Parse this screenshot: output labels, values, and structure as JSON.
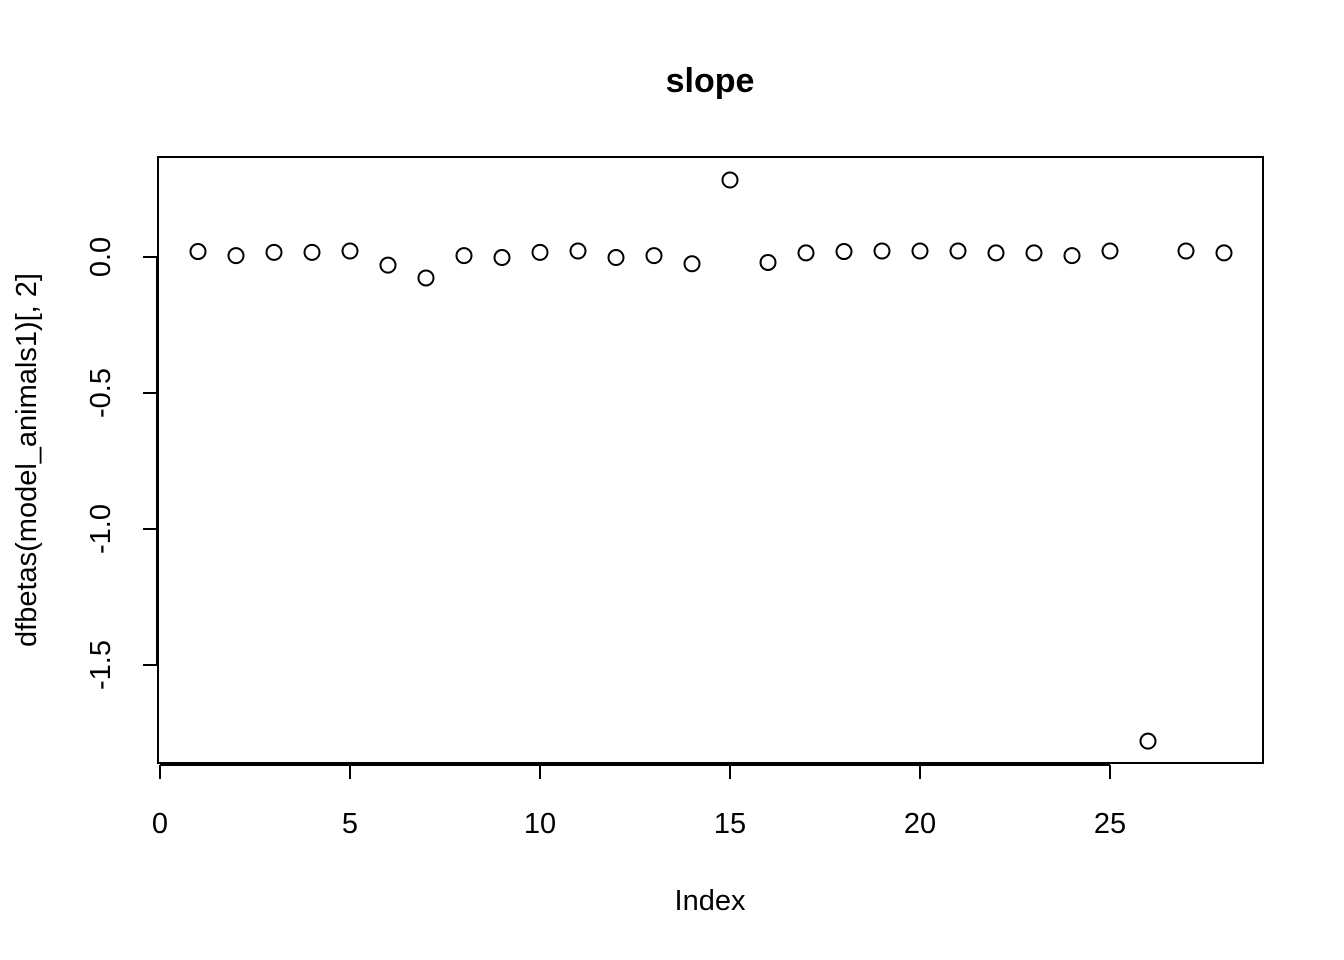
{
  "chart_data": {
    "type": "scatter",
    "title": "slope",
    "xlabel": "Index",
    "ylabel": "dfbetas(model_animals1)[, 2]",
    "xlim": [
      0,
      29
    ],
    "ylim": [
      -1.85,
      0.3
    ],
    "x_ticks": [
      0,
      5,
      10,
      15,
      20,
      25
    ],
    "y_ticks": [
      0.0,
      -0.5,
      -1.0,
      -1.5
    ],
    "x_tick_labels": [
      "0",
      "5",
      "10",
      "15",
      "20",
      "25"
    ],
    "y_tick_labels": [
      "0.0",
      "-0.5",
      "-1.0",
      "-1.5"
    ],
    "grid": false,
    "x": [
      1,
      2,
      3,
      4,
      5,
      6,
      7,
      8,
      9,
      10,
      11,
      12,
      13,
      14,
      15,
      16,
      17,
      18,
      19,
      20,
      21,
      22,
      23,
      24,
      25,
      26,
      27,
      28
    ],
    "y": [
      0.02,
      0.005,
      0.017,
      0.017,
      0.022,
      -0.03,
      -0.077,
      0.005,
      -0.002,
      0.017,
      0.022,
      -0.002,
      0.005,
      -0.025,
      0.283,
      -0.02,
      0.015,
      0.02,
      0.022,
      0.022,
      0.022,
      0.015,
      0.015,
      0.005,
      0.022,
      -1.78,
      0.022,
      0.015
    ]
  }
}
